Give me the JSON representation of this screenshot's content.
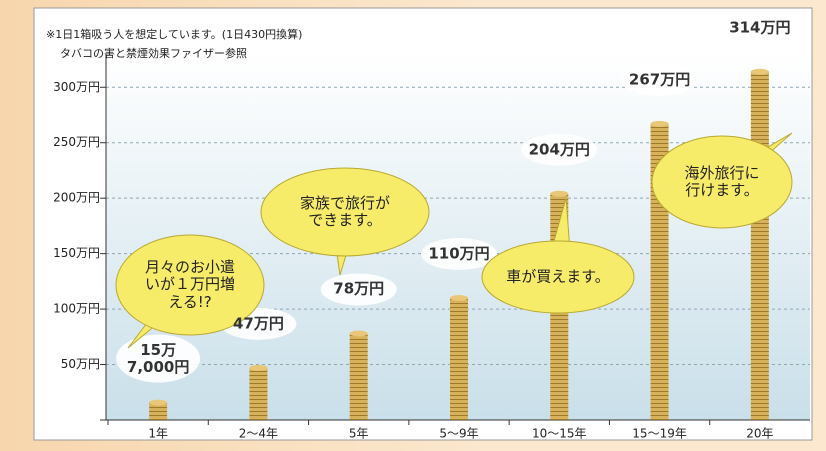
{
  "chart_data": {
    "type": "bar",
    "notes": [
      "※1日1箱吸う人を想定しています。(1日430円換算)",
      "タバコの害と禁煙効果ファイザー参照"
    ],
    "categories": [
      "1年",
      "2〜4年",
      "5年",
      "5〜9年",
      "10〜15年",
      "15〜19年",
      "20年"
    ],
    "values": [
      15.7,
      47,
      78,
      110,
      204,
      267,
      314
    ],
    "value_labels": [
      "15万\n7,000円",
      "47万円",
      "78万円",
      "110万円",
      "204万円",
      "267万円",
      "314万円"
    ],
    "color": "#c9a24a",
    "ylim": [
      0,
      330
    ],
    "yticks": [
      0,
      {
        "value": 50,
        "label": "50万円"
      },
      {
        "value": 100,
        "label": "100万円"
      },
      {
        "value": 150,
        "label": "150万円"
      },
      {
        "value": 200,
        "label": "200万円"
      },
      {
        "value": 250,
        "label": "250万円"
      },
      {
        "value": 300,
        "label": "300万円"
      }
    ],
    "grid": true,
    "annotations": [
      "月々のお小遣\nいが１万円増\nえる!?",
      "家族で旅行が\nできます。",
      "車が買えます。",
      "海外旅行に\n行けます。"
    ]
  }
}
